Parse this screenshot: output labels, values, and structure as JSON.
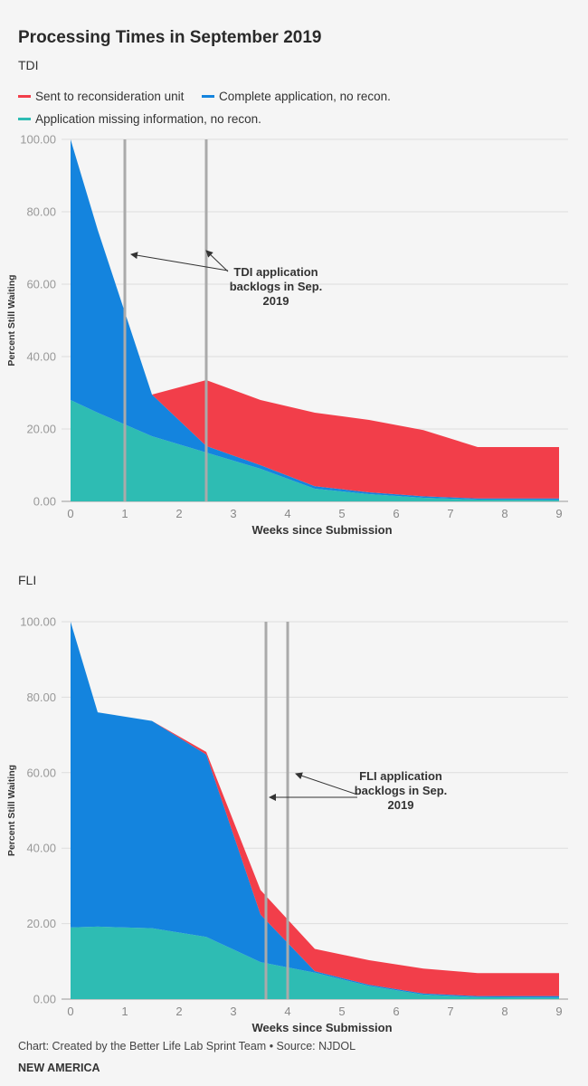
{
  "title": "Processing Times in September 2019",
  "legend": [
    {
      "label": "Sent to reconsideration unit",
      "color": "#f23e4a"
    },
    {
      "label": "Complete application, no recon.",
      "color": "#1484de"
    },
    {
      "label": "Application missing information, no recon.",
      "color": "#2ebcb3"
    }
  ],
  "footer": "Chart: Created by the Better Life Lab Sprint Team • Source: NJDOL",
  "brand": "NEW AMERICA",
  "chart_data": [
    {
      "type": "area",
      "stacked": true,
      "title": "TDI",
      "xlabel": "Weeks since Submission",
      "ylabel": "Percent Still Waiting",
      "xlim": [
        0,
        9
      ],
      "ylim": [
        0,
        100
      ],
      "xticks": [
        "0",
        "1",
        "2",
        "3",
        "4",
        "5",
        "6",
        "7",
        "8",
        "9"
      ],
      "yticks": [
        "0.00",
        "20.00",
        "40.00",
        "60.00",
        "80.00",
        "100.00"
      ],
      "grid": true,
      "legend_position": "top",
      "x": [
        0,
        0.5,
        1.5,
        2.5,
        3.5,
        4.5,
        5.5,
        6.5,
        7.5,
        9
      ],
      "series": [
        {
          "name": "Application missing information, no recon.",
          "color": "#2ebcb3",
          "values": [
            28,
            24.5,
            18,
            13.5,
            9,
            3.5,
            2,
            1,
            0.5,
            0.4
          ]
        },
        {
          "name": "Complete application, no recon.",
          "color": "#1484de",
          "values": [
            72,
            50.5,
            11.5,
            1.8,
            1,
            0.7,
            0.5,
            0.4,
            0.3,
            0.4
          ]
        },
        {
          "name": "Sent to reconsideration unit",
          "color": "#f23e4a",
          "values": [
            0,
            0,
            0,
            18.2,
            18,
            20.3,
            20,
            18.3,
            14.2,
            14.2
          ]
        }
      ],
      "reference_lines": [
        1.0,
        2.5
      ],
      "annotation": [
        "TDI application",
        "backlogs in Sep.",
        "2019"
      ]
    },
    {
      "type": "area",
      "stacked": true,
      "title": "FLI",
      "xlabel": "Weeks since Submission",
      "ylabel": "Percent Still Waiting",
      "xlim": [
        0,
        9
      ],
      "ylim": [
        0,
        100
      ],
      "xticks": [
        "0",
        "1",
        "2",
        "3",
        "4",
        "5",
        "6",
        "7",
        "8",
        "9"
      ],
      "yticks": [
        "0.00",
        "20.00",
        "40.00",
        "60.00",
        "80.00",
        "100.00"
      ],
      "grid": true,
      "x": [
        0,
        0.5,
        1.5,
        2.5,
        3.5,
        4.5,
        5.5,
        6.5,
        7.5,
        9
      ],
      "series": [
        {
          "name": "Application missing information, no recon.",
          "color": "#2ebcb3",
          "values": [
            19,
            19.2,
            18.8,
            16.5,
            9.8,
            7,
            3.5,
            1.2,
            0.5,
            0.4
          ]
        },
        {
          "name": "Complete application, no recon.",
          "color": "#1484de",
          "values": [
            81,
            56.8,
            54.9,
            48.3,
            12.6,
            0.4,
            0.3,
            0.3,
            0.3,
            0.4
          ]
        },
        {
          "name": "Sent to reconsideration unit",
          "color": "#f23e4a",
          "values": [
            0,
            0,
            0,
            0.7,
            6.5,
            5.9,
            6.5,
            6.6,
            6.1,
            6.1
          ]
        }
      ],
      "reference_lines": [
        3.6,
        4.0
      ],
      "annotation": [
        "FLI application",
        "backlogs in Sep.",
        "2019"
      ]
    }
  ]
}
